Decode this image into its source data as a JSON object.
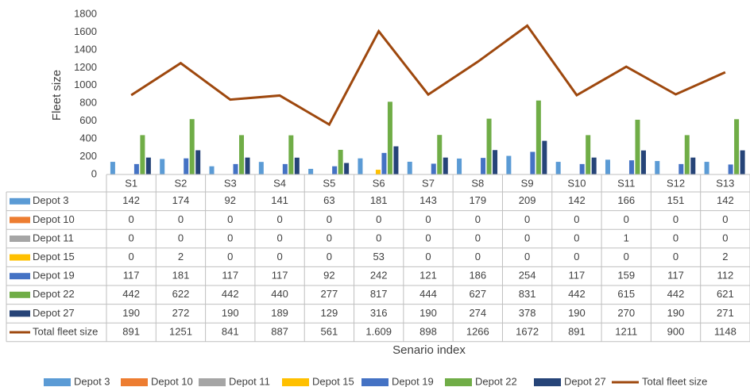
{
  "chart_data": {
    "type": "bar",
    "x_label": "Senario index",
    "y_label": "Fleet size",
    "categories": [
      "S1",
      "S2",
      "S3",
      "S4",
      "S5",
      "S6",
      "S7",
      "S8",
      "S9",
      "S10",
      "S11",
      "S12",
      "S13"
    ],
    "series": [
      {
        "name": "Depot 3",
        "color": "#5b9bd5",
        "values": [
          142,
          174,
          92,
          141,
          63,
          181,
          143,
          179,
          209,
          142,
          166,
          151,
          142
        ]
      },
      {
        "name": "Depot 10",
        "color": "#ed7d31",
        "values": [
          0,
          0,
          0,
          0,
          0,
          0,
          0,
          0,
          0,
          0,
          0,
          0,
          0
        ]
      },
      {
        "name": "Depot 11",
        "color": "#a5a5a5",
        "values": [
          0,
          0,
          0,
          0,
          0,
          0,
          0,
          0,
          0,
          0,
          1,
          0,
          0
        ]
      },
      {
        "name": "Depot 15",
        "color": "#ffc000",
        "values": [
          0,
          2,
          0,
          0,
          0,
          53,
          0,
          0,
          0,
          0,
          0,
          0,
          2
        ]
      },
      {
        "name": "Depot 19",
        "color": "#4472c4",
        "values": [
          117,
          181,
          117,
          117,
          92,
          242,
          121,
          186,
          254,
          117,
          159,
          117,
          112
        ]
      },
      {
        "name": "Depot 22",
        "color": "#70ad47",
        "values": [
          442,
          622,
          442,
          440,
          277,
          817,
          444,
          627,
          831,
          442,
          615,
          442,
          621
        ]
      },
      {
        "name": "Depot 27",
        "color": "#264478",
        "values": [
          190,
          272,
          190,
          189,
          129,
          316,
          190,
          274,
          378,
          190,
          270,
          190,
          271
        ]
      },
      {
        "name": "Total fleet size",
        "type": "line",
        "color": "#9e480e",
        "values": [
          891,
          1251,
          841,
          887,
          561,
          1609,
          898,
          1266,
          1672,
          891,
          1211,
          900,
          1148
        ],
        "value_labels": [
          "891",
          "1251",
          "841",
          "887",
          "561",
          "1.609",
          "898",
          "1266",
          "1672",
          "891",
          "1211",
          "900",
          "1148"
        ]
      }
    ],
    "ylim": [
      0,
      1800
    ],
    "yticks": [
      0,
      200,
      400,
      600,
      800,
      1000,
      1200,
      1400,
      1600,
      1800
    ],
    "grid": false,
    "legend": "bottom"
  }
}
